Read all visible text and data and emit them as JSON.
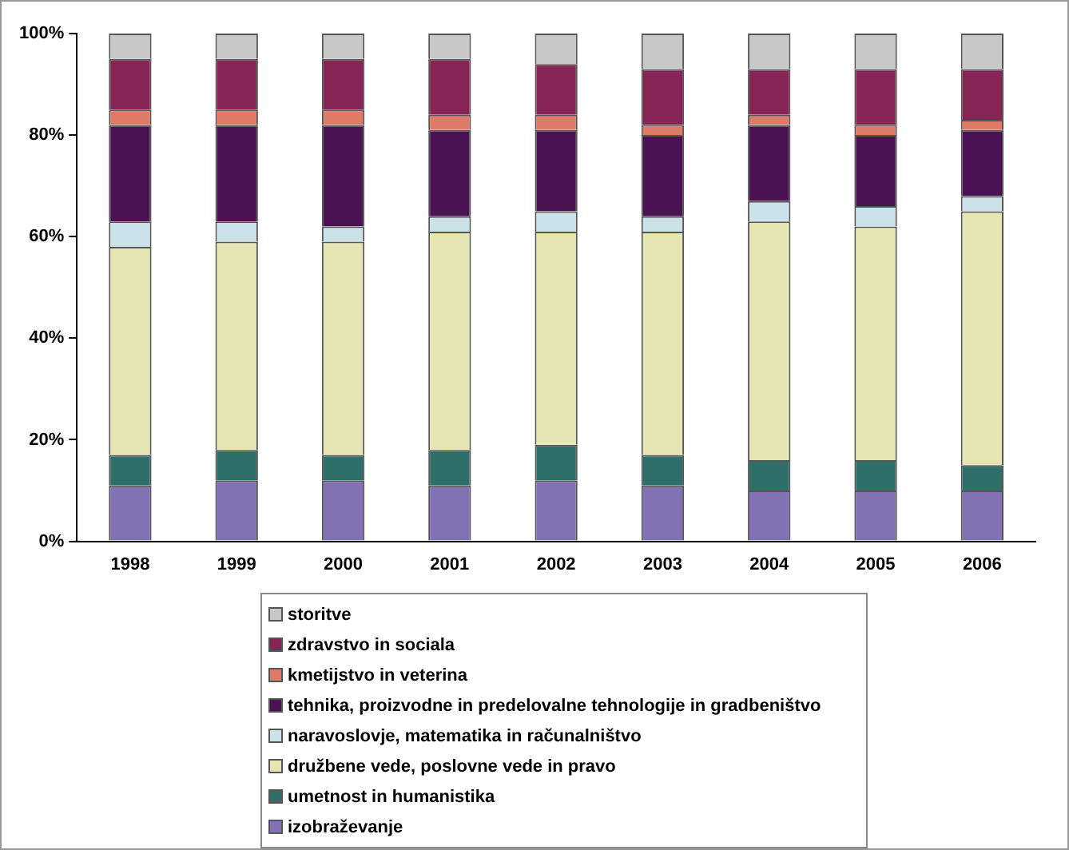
{
  "chart_data": {
    "type": "bar",
    "stacked": true,
    "legend": "bottom",
    "categories": [
      "1998",
      "1999",
      "2000",
      "2001",
      "2002",
      "2003",
      "2004",
      "2005",
      "2006"
    ],
    "ylim": [
      0,
      100
    ],
    "yticks": [
      {
        "value": 0,
        "label": "0%"
      },
      {
        "value": 20,
        "label": "20%"
      },
      {
        "value": 40,
        "label": "40%"
      },
      {
        "value": 60,
        "label": "60%"
      },
      {
        "value": 80,
        "label": "80%"
      },
      {
        "value": 100,
        "label": "100%"
      }
    ],
    "series": [
      {
        "name": "izobraževanje",
        "color": "#8272b4",
        "values": [
          11,
          12,
          12,
          11,
          12,
          11,
          10,
          10,
          10
        ]
      },
      {
        "name": "umetnost in humanistika",
        "color": "#2f6f6a",
        "values": [
          6,
          6,
          5,
          7,
          7,
          6,
          6,
          6,
          5
        ]
      },
      {
        "name": "družbene vede, poslovne vede in pravo",
        "color": "#e6e6b4",
        "values": [
          41,
          41,
          42,
          43,
          42,
          44,
          47,
          46,
          50
        ]
      },
      {
        "name": "naravoslovje, matematika in računalništvo",
        "color": "#cce2ea",
        "values": [
          5,
          4,
          3,
          3,
          4,
          3,
          4,
          4,
          3
        ]
      },
      {
        "name": "tehnika, proizvodne in predelovalne tehnologije in gradbeništvo",
        "color": "#4a1252",
        "values": [
          19,
          19,
          20,
          17,
          16,
          16,
          15,
          14,
          13
        ]
      },
      {
        "name": "kmetijstvo in veterina",
        "color": "#e07a68",
        "values": [
          3,
          3,
          3,
          3,
          3,
          2,
          2,
          2,
          2
        ]
      },
      {
        "name": "zdravstvo in sociala",
        "color": "#862456",
        "values": [
          10,
          10,
          10,
          11,
          10,
          11,
          9,
          11,
          10
        ]
      },
      {
        "name": "storitve",
        "color": "#c8c8c8",
        "values": [
          5,
          5,
          5,
          5,
          6,
          7,
          7,
          7,
          7
        ]
      }
    ]
  }
}
